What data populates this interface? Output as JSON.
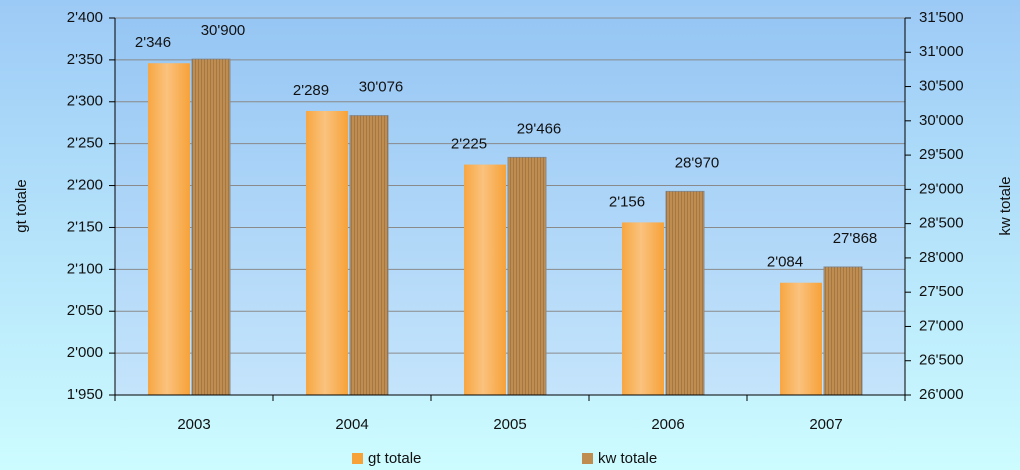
{
  "chart_data": {
    "type": "bar",
    "categories": [
      "2003",
      "2004",
      "2005",
      "2006",
      "2007"
    ],
    "y_label": "gt totale",
    "y2_label": "kw totale",
    "series": [
      {
        "name": "gt totale",
        "color": "#f7a238",
        "axis": "y",
        "values": [
          2346,
          2289,
          2225,
          2156,
          2084
        ],
        "value_labels": [
          "2'346",
          "2'289",
          "2'225",
          "2'156",
          "2'084"
        ]
      },
      {
        "name": "kw totale",
        "color": "#bf8d50",
        "axis": "y2",
        "values": [
          30900,
          30076,
          29466,
          28970,
          27868
        ],
        "value_labels": [
          "30'900",
          "30'076",
          "29'466",
          "28'970",
          "27'868"
        ]
      }
    ],
    "ylim": [
      1950,
      2400
    ],
    "yticks": [
      {
        "value": 1950,
        "label": "1'950"
      },
      {
        "value": 2000,
        "label": "2'000"
      },
      {
        "value": 2050,
        "label": "2'050"
      },
      {
        "value": 2100,
        "label": "2'100"
      },
      {
        "value": 2150,
        "label": "2'150"
      },
      {
        "value": 2200,
        "label": "2'200"
      },
      {
        "value": 2250,
        "label": "2'250"
      },
      {
        "value": 2300,
        "label": "2'300"
      },
      {
        "value": 2350,
        "label": "2'350"
      },
      {
        "value": 2400,
        "label": "2'400"
      }
    ],
    "y2lim": [
      26000,
      31500
    ],
    "y2ticks": [
      {
        "value": 26000,
        "label": "26'000"
      },
      {
        "value": 26500,
        "label": "26'500"
      },
      {
        "value": 27000,
        "label": "27'000"
      },
      {
        "value": 27500,
        "label": "27'500"
      },
      {
        "value": 28000,
        "label": "28'000"
      },
      {
        "value": 28500,
        "label": "28'500"
      },
      {
        "value": 29000,
        "label": "29'000"
      },
      {
        "value": 29500,
        "label": "29'500"
      },
      {
        "value": 30000,
        "label": "30'000"
      },
      {
        "value": 30500,
        "label": "30'500"
      },
      {
        "value": 31000,
        "label": "31'000"
      },
      {
        "value": 31500,
        "label": "31'500"
      }
    ],
    "grid": true,
    "legend": "bottom"
  }
}
